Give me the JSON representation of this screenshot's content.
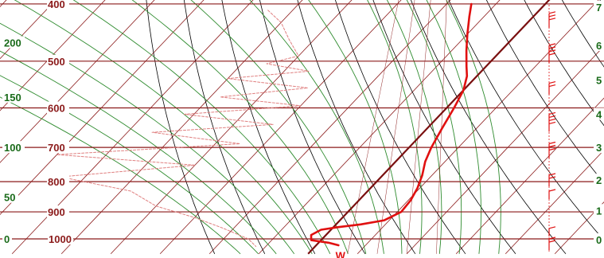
{
  "chart_data": {
    "type": "line",
    "title": "",
    "xlabel": "",
    "ylabel": "",
    "y_scale": "log-pressure",
    "ylim_hpa": [
      1040,
      390
    ],
    "grid": true,
    "isobars": [
      {
        "label": "400",
        "pressure_hpa": 400
      },
      {
        "label": "500",
        "pressure_hpa": 500
      },
      {
        "label": "600",
        "pressure_hpa": 600
      },
      {
        "label": "700",
        "pressure_hpa": 700
      },
      {
        "label": "800",
        "pressure_hpa": 800
      },
      {
        "label": "900",
        "pressure_hpa": 900
      },
      {
        "label": "1000",
        "pressure_hpa": 1000
      }
    ],
    "left_scale": [
      {
        "label": "200",
        "pressure_hpa": 465
      },
      {
        "label": "150",
        "pressure_hpa": 575
      },
      {
        "label": "100",
        "pressure_hpa": 700
      },
      {
        "label": "50",
        "pressure_hpa": 850
      },
      {
        "label": "0",
        "pressure_hpa": 1000
      }
    ],
    "right_scale": [
      {
        "label": "7",
        "pressure_hpa": 405
      },
      {
        "label": "6",
        "pressure_hpa": 470
      },
      {
        "label": "5",
        "pressure_hpa": 538
      },
      {
        "label": "4",
        "pressure_hpa": 615
      },
      {
        "label": "3",
        "pressure_hpa": 700
      },
      {
        "label": "2",
        "pressure_hpa": 795
      },
      {
        "label": "1",
        "pressure_hpa": 895
      },
      {
        "label": "0",
        "pressure_hpa": 1003
      }
    ],
    "series": [
      {
        "color": "#e01010",
        "style": "solid",
        "points": [
          {
            "x": -15,
            "p": 400
          },
          {
            "x": -13,
            "p": 420
          },
          {
            "x": -10,
            "p": 450
          },
          {
            "x": -7,
            "p": 480
          },
          {
            "x": -4,
            "p": 510
          },
          {
            "x": -2,
            "p": 530
          },
          {
            "x": 0,
            "p": 560
          },
          {
            "x": 1.5,
            "p": 600
          },
          {
            "x": 3,
            "p": 650
          },
          {
            "x": 4.5,
            "p": 700
          },
          {
            "x": 6,
            "p": 740
          },
          {
            "x": 8,
            "p": 780
          },
          {
            "x": 9.5,
            "p": 820
          },
          {
            "x": 10.5,
            "p": 860
          },
          {
            "x": 10.8,
            "p": 900
          },
          {
            "x": 9,
            "p": 930
          },
          {
            "x": 5,
            "p": 945
          },
          {
            "x": 1,
            "p": 955
          },
          {
            "x": -2,
            "p": 965
          },
          {
            "x": -3,
            "p": 985
          },
          {
            "x": -2,
            "p": 1005
          },
          {
            "x": 2,
            "p": 1015
          },
          {
            "x": 4.5,
            "p": 1025
          }
        ]
      },
      {
        "color": "#e08080",
        "style": "dashed",
        "points": [
          {
            "x": -55,
            "p": 410
          },
          {
            "x": -50,
            "p": 430
          },
          {
            "x": -45,
            "p": 460
          },
          {
            "x": -40,
            "p": 490
          },
          {
            "x": -45,
            "p": 505
          },
          {
            "x": -35,
            "p": 520
          },
          {
            "x": -50,
            "p": 535
          },
          {
            "x": -32,
            "p": 555
          },
          {
            "x": -48,
            "p": 575
          },
          {
            "x": -30,
            "p": 595
          },
          {
            "x": -52,
            "p": 615
          },
          {
            "x": -32,
            "p": 640
          },
          {
            "x": -55,
            "p": 660
          },
          {
            "x": -35,
            "p": 690
          },
          {
            "x": -70,
            "p": 720
          },
          {
            "x": -40,
            "p": 750
          },
          {
            "x": -65,
            "p": 785
          },
          {
            "x": -48,
            "p": 830
          },
          {
            "x": -40,
            "p": 880
          },
          {
            "x": -30,
            "p": 920
          },
          {
            "x": -22,
            "p": 960
          },
          {
            "x": -15,
            "p": 1000
          },
          {
            "x": -12,
            "p": 1030
          }
        ]
      }
    ],
    "annotations": [
      {
        "text": "W",
        "x": 3.5,
        "p": 1030,
        "color": "#e01010"
      }
    ],
    "colors": {
      "isobar": "#8b1a1a",
      "isotherm": "#8b1a1a",
      "adiabat_dry": "#000000",
      "adiabat_moist": "#2e8b2e",
      "mixing_ratio": "#8b1a1a",
      "zero_isotherm": "#7a1010",
      "temperature": "#e01010",
      "dewpoint": "#e08080",
      "scale_text": "#1a6b1a",
      "axis_text": "#8b1a1a"
    }
  }
}
